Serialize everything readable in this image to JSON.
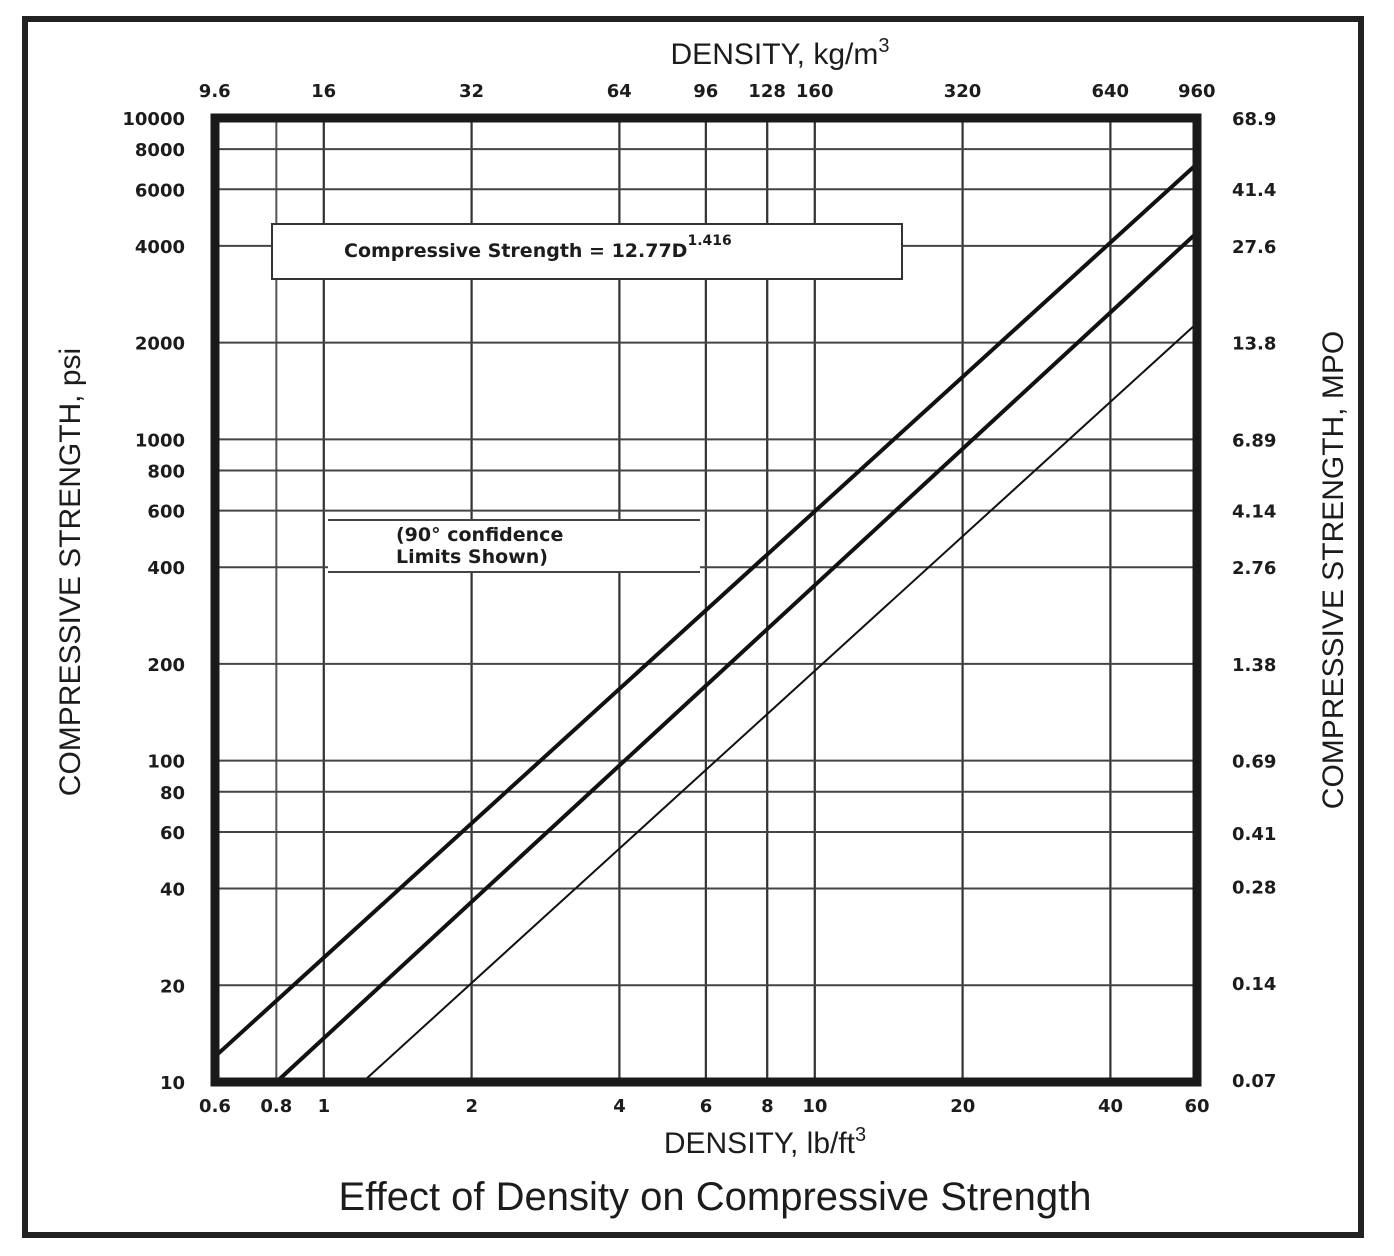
{
  "chart_data": {
    "type": "line",
    "title": "Effect of Density on Compressive Strength",
    "xlabel": "DENSITY, lb/ft",
    "xlabel_sup": "3",
    "x2label": "DENSITY, kg/m",
    "x2label_sup": "3",
    "ylabel": "COMPRESSIVE STRENGTH, psi",
    "y2label": "COMPRESSIVE STRENGTH, MPO",
    "x_scale": "log",
    "y_scale": "log",
    "xlim": [
      0.6,
      60
    ],
    "ylim": [
      10,
      10000
    ],
    "grid": true,
    "x_ticks": [
      {
        "value": 0.6,
        "label": "0.6"
      },
      {
        "value": 0.8,
        "label": "0.8"
      },
      {
        "value": 1,
        "label": "1"
      },
      {
        "value": 2,
        "label": "2"
      },
      {
        "value": 4,
        "label": "4"
      },
      {
        "value": 6,
        "label": "6"
      },
      {
        "value": 8,
        "label": "8"
      },
      {
        "value": 10,
        "label": "10"
      },
      {
        "value": 20,
        "label": "20"
      },
      {
        "value": 40,
        "label": "40"
      },
      {
        "value": 60,
        "label": "60"
      }
    ],
    "x2_ticks": [
      {
        "value": 9.6,
        "label": "9.6"
      },
      {
        "value": 16,
        "label": "16"
      },
      {
        "value": 32,
        "label": "32"
      },
      {
        "value": 64,
        "label": "64"
      },
      {
        "value": 96,
        "label": "96"
      },
      {
        "value": 128,
        "label": "128"
      },
      {
        "value": 160,
        "label": "160"
      },
      {
        "value": 320,
        "label": "320"
      },
      {
        "value": 640,
        "label": "640"
      },
      {
        "value": 960,
        "label": "960"
      }
    ],
    "y_ticks": [
      {
        "value": 10,
        "label": "10"
      },
      {
        "value": 20,
        "label": "20"
      },
      {
        "value": 40,
        "label": "40"
      },
      {
        "value": 60,
        "label": "60"
      },
      {
        "value": 80,
        "label": "80"
      },
      {
        "value": 100,
        "label": "100"
      },
      {
        "value": 200,
        "label": "200"
      },
      {
        "value": 400,
        "label": "400"
      },
      {
        "value": 600,
        "label": "600"
      },
      {
        "value": 800,
        "label": "800"
      },
      {
        "value": 1000,
        "label": "1000"
      },
      {
        "value": 2000,
        "label": "2000"
      },
      {
        "value": 4000,
        "label": "4000"
      },
      {
        "value": 6000,
        "label": "6000"
      },
      {
        "value": 8000,
        "label": "8000"
      },
      {
        "value": 10000,
        "label": "10000"
      }
    ],
    "y2_ticks": [
      {
        "value": 0.07,
        "label": "0.07"
      },
      {
        "value": 0.14,
        "label": "0.14"
      },
      {
        "value": 0.28,
        "label": "0.28"
      },
      {
        "value": 0.41,
        "label": "0.41"
      },
      {
        "value": 0.69,
        "label": "0.69"
      },
      {
        "value": 1.38,
        "label": "1.38"
      },
      {
        "value": 2.76,
        "label": "2.76"
      },
      {
        "value": 4.14,
        "label": "4.14"
      },
      {
        "value": 6.89,
        "label": "6.89"
      },
      {
        "value": 13.8,
        "label": "13.8"
      },
      {
        "value": 27.6,
        "label": "27.6"
      },
      {
        "value": 41.4,
        "label": "41.4"
      },
      {
        "value": 68.9,
        "label": "68.9"
      }
    ],
    "series": [
      {
        "x": [
          0.6,
          60
        ],
        "y": [
          12,
          7200
        ],
        "weight": "heavy"
      },
      {
        "x": [
          0.8,
          60
        ],
        "y": [
          10,
          4400
        ],
        "weight": "heavy"
      },
      {
        "x": [
          1.2,
          60
        ],
        "y": [
          10,
          2300
        ],
        "weight": "light"
      }
    ],
    "annotations": [
      {
        "text": "Compressive Strength = 12.77D",
        "sup": "1.416"
      },
      {
        "lines": [
          "(90° confidence",
          "Limits Shown)"
        ]
      }
    ]
  }
}
